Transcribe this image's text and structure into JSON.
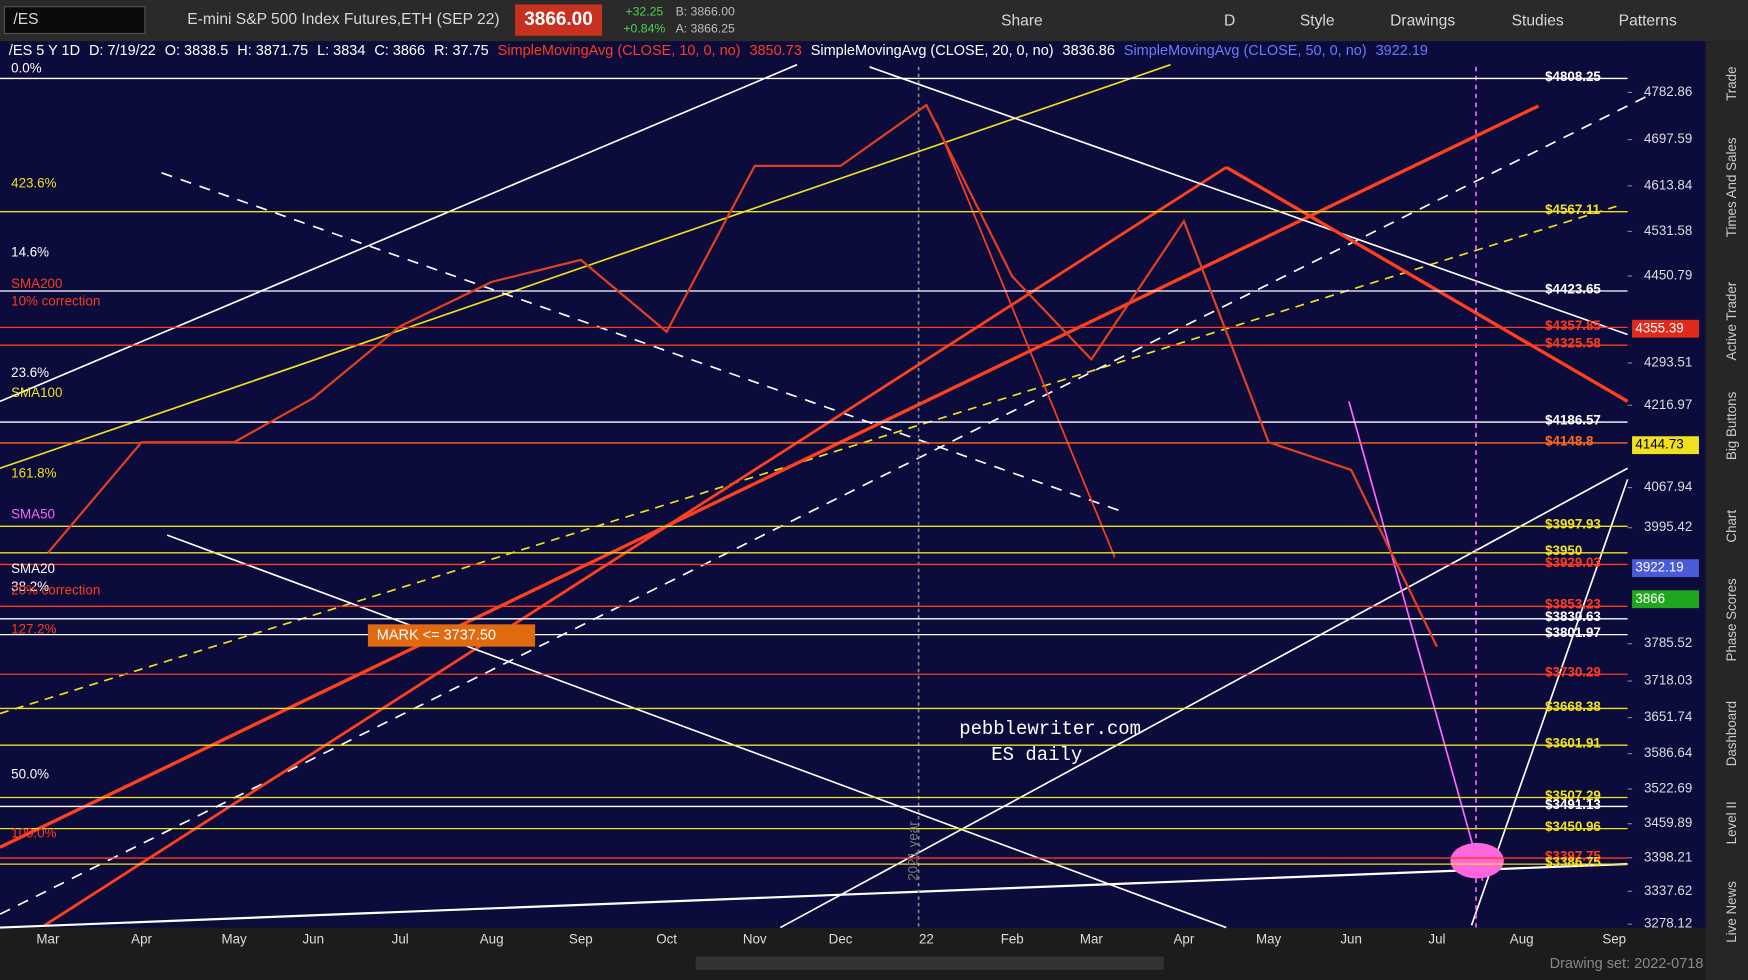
{
  "header": {
    "symbol": "/ES",
    "description": "E-mini S&P 500 Index Futures,ETH (SEP 22)",
    "last": "3866.00",
    "change": "+32.25",
    "change_pct": "+0.84%",
    "bid": "B: 3866.00",
    "ask": "A: 3866.25",
    "buttons": [
      "Share",
      "D",
      "Style",
      "Drawings",
      "Studies",
      "Patterns"
    ]
  },
  "info": {
    "symbol": "/ES 5 Y 1D",
    "date": "D: 7/19/22",
    "open": "O: 3838.5",
    "high": "H: 3871.75",
    "low": "L: 3834",
    "close": "C: 3866",
    "range": "R: 37.75",
    "studies": [
      {
        "name": "SimpleMovingAvg (CLOSE, 10, 0, no)",
        "value": "3850.73"
      },
      {
        "name": "SimpleMovingAvg (CLOSE, 20, 0, no)",
        "value": "3836.86"
      },
      {
        "name": "SimpleMovingAvg (CLOSE, 50, 0, no)",
        "value": "3922.19"
      }
    ]
  },
  "chart_data": {
    "type": "line",
    "categories": [
      "Mar",
      "Apr",
      "May",
      "Jun",
      "Jul",
      "Aug",
      "Sep",
      "Oct",
      "Nov",
      "Dec",
      "22",
      "Feb",
      "Mar",
      "Apr",
      "May",
      "Jun",
      "Jul",
      "Aug",
      "Sep"
    ],
    "series": [
      {
        "color": "#e04020",
        "values": [
          3950,
          4150,
          4150,
          4230,
          4360,
          4440,
          4480,
          4350,
          4650,
          4650,
          4760,
          4450,
          4300,
          4550,
          4150,
          4100,
          3780,
          null,
          null
        ]
      }
    ],
    "ylim": [
      3272,
      4825
    ],
    "yticks": [
      4782.86,
      4697.59,
      4613.84,
      4531.58,
      4450.79,
      4293.51,
      4216.97,
      4067.94,
      3995.42,
      3785.52,
      3718.03,
      3651.74,
      3586.64,
      3522.69,
      3459.89,
      3398.21,
      3337.62,
      3278.12
    ],
    "levels": [
      {
        "value": 4808.25,
        "label": "$4808.25",
        "color": "#ffffff"
      },
      {
        "value": 4567.11,
        "label": "$4567.11",
        "color": "#f0e020"
      },
      {
        "value": 4423.65,
        "label": "$4423.65",
        "color": "#ffffff"
      },
      {
        "value": 4357.85,
        "label": "$4357.85",
        "color": "#ff3b1f"
      },
      {
        "value": 4325.58,
        "label": "$4325.58",
        "color": "#ff3b1f"
      },
      {
        "value": 4186.57,
        "label": "$4186.57",
        "color": "#ffffff"
      },
      {
        "value": 4148.8,
        "label": "$4148.8",
        "color": "#ff6a1f"
      },
      {
        "value": 3997.93,
        "label": "$3997.93",
        "color": "#f0e020"
      },
      {
        "value": 3950,
        "label": "$3950",
        "color": "#f0e020"
      },
      {
        "value": 3929.03,
        "label": "$3929.03",
        "color": "#ff3b1f"
      },
      {
        "value": 3853.23,
        "label": "$3853.23",
        "color": "#ff3b1f"
      },
      {
        "value": 3830.63,
        "label": "$3830.63",
        "color": "#ffffff"
      },
      {
        "value": 3801.97,
        "label": "$3801.97",
        "color": "#ffffff"
      },
      {
        "value": 3730.29,
        "label": "$3730.29",
        "color": "#ff3b1f"
      },
      {
        "value": 3668.38,
        "label": "$3668.38",
        "color": "#f0e020"
      },
      {
        "value": 3601.91,
        "label": "$3601.91",
        "color": "#f0e020"
      },
      {
        "value": 3507.29,
        "label": "$3507.29",
        "color": "#f0e020"
      },
      {
        "value": 3491.13,
        "label": "$3491.13",
        "color": "#ffffff"
      },
      {
        "value": 3450.96,
        "label": "$3450.96",
        "color": "#f0e020"
      },
      {
        "value": 3397.75,
        "label": "$3397.75",
        "color": "#ff3b1f"
      },
      {
        "value": 3386.75,
        "label": "$3386.75",
        "color": "#f0e020"
      }
    ],
    "badges": [
      {
        "value": 4355.39,
        "color": "#e02a1a"
      },
      {
        "value": 4144.73,
        "color": "#f0e020"
      },
      {
        "value": 3922.19,
        "color": "#4a5bd8"
      },
      {
        "value": 3866,
        "color": "#1fa81f"
      }
    ],
    "left_labels": [
      "0.0%",
      "423.6%",
      "14.6%",
      "SMA200",
      "10% correction",
      "23.6%",
      "SMA100",
      "161.8%",
      "SMA50",
      "SMA20",
      "38.2%",
      "20% correction",
      "127.2%",
      "50.0%",
      "100.0%"
    ],
    "annotations": [
      "pebblewriter.com",
      "ES daily",
      "MARK <= 3737.50",
      "2021 year"
    ]
  },
  "footer": {
    "drawing_set": "Drawing set: 2022-0718"
  },
  "sidebar": [
    "Trade",
    "Times And Sales",
    "Active Trader",
    "Big Buttons",
    "Chart",
    "Phase Scores",
    "Dashboard",
    "Level II",
    "Live News"
  ]
}
